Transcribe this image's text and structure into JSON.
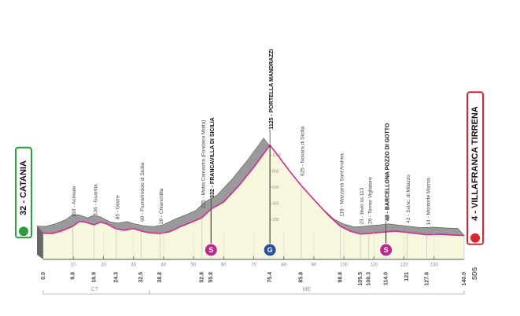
{
  "chart_data": {
    "type": "area",
    "x": [
      0,
      3,
      6,
      9.8,
      12,
      14,
      16.9,
      19,
      21,
      24.3,
      27,
      30,
      32.5,
      35,
      38.8,
      42,
      46,
      50,
      52.8,
      55.8,
      60,
      65,
      70,
      75.4,
      78,
      82,
      85.8,
      90,
      95,
      98.8,
      102,
      105.5,
      108.3,
      111,
      114,
      117,
      121,
      124,
      127.6,
      132,
      136,
      140
    ],
    "values": [
      32,
      30,
      60,
      118,
      180,
      170,
      136,
      170,
      150,
      85,
      70,
      90,
      60,
      40,
      28,
      50,
      120,
      180,
      225,
      332,
      420,
      620,
      850,
      1125,
      1000,
      800,
      625,
      450,
      250,
      119,
      60,
      23,
      29,
      40,
      48,
      60,
      42,
      30,
      14,
      20,
      10,
      4
    ],
    "line_color": "#d6288f",
    "fill_color": "#f6f7dc",
    "shadow_color": "#9a9a9a",
    "xlim": [
      0,
      140
    ],
    "xticks": [
      10,
      20,
      30,
      40,
      50,
      60,
      70,
      80,
      90,
      100,
      110,
      120,
      130
    ],
    "ylim": [
      0,
      1200
    ],
    "yticks": [
      200,
      400,
      600,
      800,
      1000
    ],
    "waypoints": [
      {
        "km": {
          "value": 0,
          "label": "0.0"
        },
        "label": "32 - CATANIA"
      },
      {
        "km": 9.8,
        "label": "118 - Acireale"
      },
      {
        "km": 16.9,
        "label": "136 - Guardia"
      },
      {
        "km": 24.3,
        "label": "85 - Giarre"
      },
      {
        "km": 32.5,
        "label": "60 - Fiumefreddo di Sicilia"
      },
      {
        "km": 38.8,
        "label": "28 - Chianchitta"
      },
      {
        "km": 52.8,
        "label": "225 - Motta Camastra (Fondaco Motta)"
      },
      {
        "km": 55.8,
        "label": "332 - FRANCAVILLA DI SICILIA"
      },
      {
        "km": 75.4,
        "label": "1125 - PORTELLA MANDRAZZI"
      },
      {
        "km": 85.8,
        "label": "625 - Novara di Sicilia"
      },
      {
        "km": 98.8,
        "label": "119 - Mazzarrà Sant'Andrea"
      },
      {
        "km": 105.5,
        "label": "23 - bivio ss.113"
      },
      {
        "km": 108.3,
        "label": "29 - Terme Vigliatore"
      },
      {
        "km": {
          "value": 114,
          "label": "114.0"
        },
        "label": "48 - BARCELLONA POZZO DI GOTTO"
      },
      {
        "km": 121,
        "label": "42 - Svinc. di Milazzo"
      },
      {
        "km": 127.6,
        "label": "14 - Montorte Marina"
      },
      {
        "km": {
          "value": 140,
          "label": "140.0"
        },
        "label": "4 - VILLAFRANCA TIRRENA"
      }
    ],
    "start_color": "#2e9e3a",
    "finish_color": "#d6282e",
    "finish_note": "SDS",
    "markers": [
      {
        "km": 55.8,
        "symbol": "S",
        "color": "#c0278a"
      },
      {
        "km": 75.4,
        "symbol": "G",
        "color": "#2a4f9e"
      },
      {
        "km": 114,
        "symbol": "S",
        "color": "#c0278a"
      }
    ],
    "regions": [
      {
        "label": "CT",
        "from": 0,
        "to": 35.3
      },
      {
        "label": "ME",
        "from": 35.3,
        "to": 140
      }
    ]
  }
}
